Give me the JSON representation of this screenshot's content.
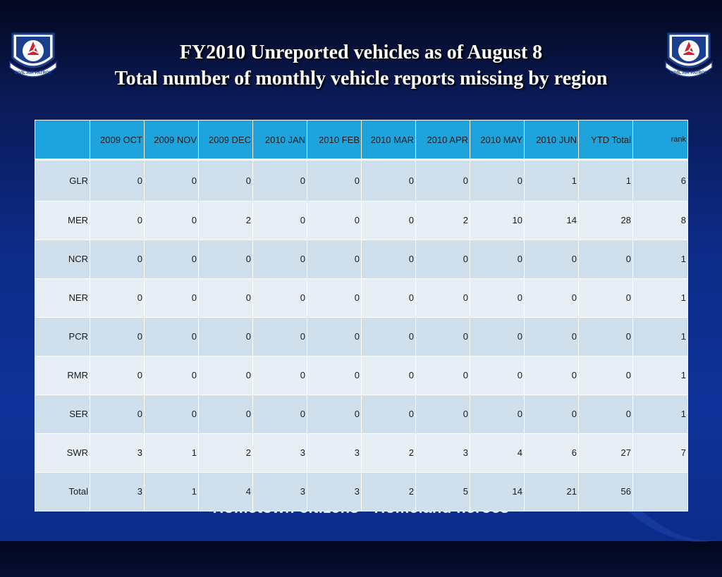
{
  "slide": {
    "title_line1": "FY2010 Unreported vehicles as of August 8",
    "title_line2": "Total number of monthly vehicle reports missing by region",
    "footer": "Hometown citizens · Homeland heroes"
  },
  "logo": {
    "text": "CIVIL AIR PATROL"
  },
  "table": {
    "headers": [
      "",
      "2009 OCT",
      "2009 NOV",
      "2009 DEC",
      "2010 JAN",
      "2010 FEB",
      "2010 MAR",
      "2010 APR",
      "2010 MAY",
      "2010 JUN",
      "YTD Total",
      "rank"
    ],
    "rows": [
      [
        "GLR",
        "0",
        "0",
        "0",
        "0",
        "0",
        "0",
        "0",
        "0",
        "1",
        "1",
        "6"
      ],
      [
        "MER",
        "0",
        "0",
        "2",
        "0",
        "0",
        "0",
        "2",
        "10",
        "14",
        "28",
        "8"
      ],
      [
        "NCR",
        "0",
        "0",
        "0",
        "0",
        "0",
        "0",
        "0",
        "0",
        "0",
        "0",
        "1"
      ],
      [
        "NER",
        "0",
        "0",
        "0",
        "0",
        "0",
        "0",
        "0",
        "0",
        "0",
        "0",
        "1"
      ],
      [
        "PCR",
        "0",
        "0",
        "0",
        "0",
        "0",
        "0",
        "0",
        "0",
        "0",
        "0",
        "1"
      ],
      [
        "RMR",
        "0",
        "0",
        "0",
        "0",
        "0",
        "0",
        "0",
        "0",
        "0",
        "0",
        "1"
      ],
      [
        "SER",
        "0",
        "0",
        "0",
        "0",
        "0",
        "0",
        "0",
        "0",
        "0",
        "0",
        "1"
      ],
      [
        "SWR",
        "3",
        "1",
        "2",
        "3",
        "3",
        "2",
        "3",
        "4",
        "6",
        "27",
        "7"
      ],
      [
        "Total",
        "3",
        "1",
        "4",
        "3",
        "3",
        "2",
        "5",
        "14",
        "21",
        "56",
        ""
      ]
    ]
  },
  "colors": {
    "header_fill": "#1fa3dc",
    "row_light": "#e8eef6",
    "row_medium": "#cfdfec",
    "logo_blue": "#1b3f8f",
    "logo_red": "#d2242a"
  }
}
